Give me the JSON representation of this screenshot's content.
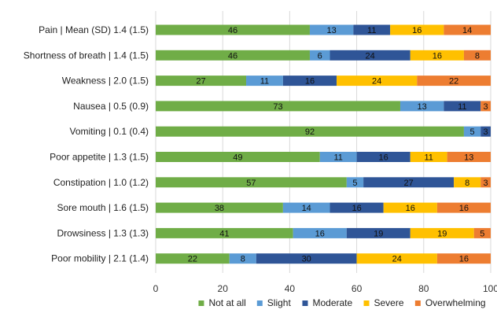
{
  "chart_data": {
    "type": "bar",
    "orientation": "horizontal",
    "stacked": true,
    "categories": [
      "Pain | Mean (SD) 1.4 (1.5)",
      "Shortness of breath | 1.4 (1.5)",
      "Weakness | 2.0 (1.5)",
      "Nausea | 0.5 (0.9)",
      "Vomiting | 0.1 (0.4)",
      "Poor appetite | 1.3 (1.5)",
      "Constipation | 1.0 (1.2)",
      "Sore mouth | 1.6 (1.5)",
      "Drowsiness | 1.3 (1.3)",
      "Poor mobility | 2.1 (1.4)"
    ],
    "series": [
      {
        "name": "Not at all",
        "color": "#70ad47",
        "values": [
          46,
          46,
          27,
          73,
          92,
          49,
          57,
          38,
          41,
          22
        ]
      },
      {
        "name": "Slight",
        "color": "#5b9bd5",
        "values": [
          13,
          6,
          11,
          13,
          5,
          11,
          5,
          14,
          16,
          8
        ]
      },
      {
        "name": "Moderate",
        "color": "#2f5597",
        "values": [
          11,
          24,
          16,
          11,
          3,
          16,
          27,
          16,
          19,
          30
        ]
      },
      {
        "name": "Severe",
        "color": "#ffc000",
        "values": [
          16,
          16,
          24,
          0,
          0,
          11,
          8,
          16,
          19,
          24
        ]
      },
      {
        "name": "Overwhelming",
        "color": "#ed7d31",
        "values": [
          14,
          8,
          22,
          3,
          0,
          13,
          3,
          16,
          5,
          16
        ]
      }
    ],
    "xlim": [
      0,
      100
    ],
    "xticks": [
      0,
      20,
      40,
      60,
      80,
      100
    ],
    "xlabel": "",
    "ylabel": "",
    "grid": true,
    "legend_position": "bottom"
  }
}
